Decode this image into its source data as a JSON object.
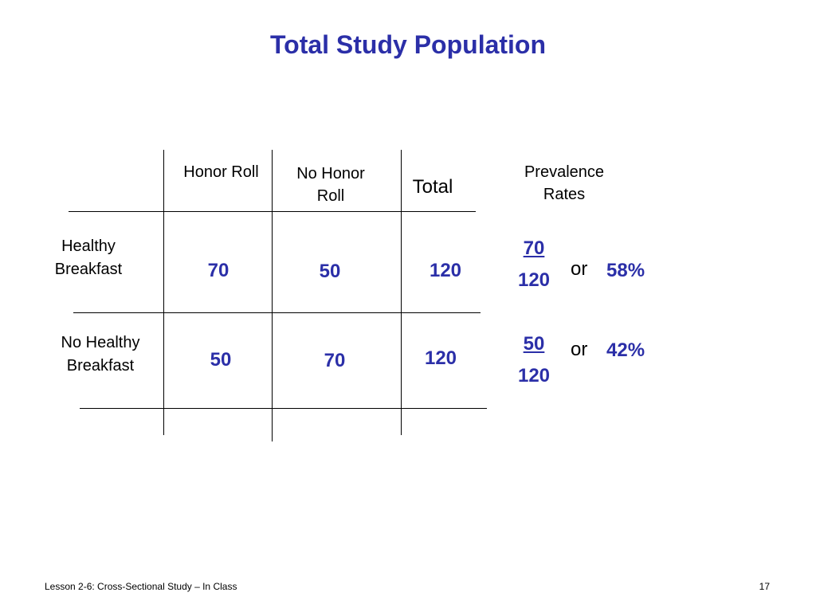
{
  "title": "Total Study Population",
  "table": {
    "headers": {
      "honor_roll": "Honor  Roll",
      "no_honor_roll": "No Honor Roll",
      "total": "Total",
      "prevalence": "Prevalence Rates"
    },
    "rows": [
      {
        "label": "Healthy Breakfast",
        "honor_roll": "70",
        "no_honor_roll": "50",
        "total": "120",
        "prevalence_numerator": "70",
        "prevalence_denominator": "120",
        "or_label": "or",
        "prevalence_percent": "58%"
      },
      {
        "label": "No Healthy Breakfast",
        "honor_roll": "50",
        "no_honor_roll": "70",
        "total": "120",
        "prevalence_numerator": "50",
        "prevalence_denominator": "120",
        "or_label": "or",
        "prevalence_percent": "42%"
      }
    ]
  },
  "footer": {
    "lesson": "Lesson 2-6:  Cross-Sectional Study – In Class",
    "page_number": "17"
  },
  "colors": {
    "title": "#2b2fa8",
    "numbers": "#2b2fa8",
    "text": "#000000"
  }
}
